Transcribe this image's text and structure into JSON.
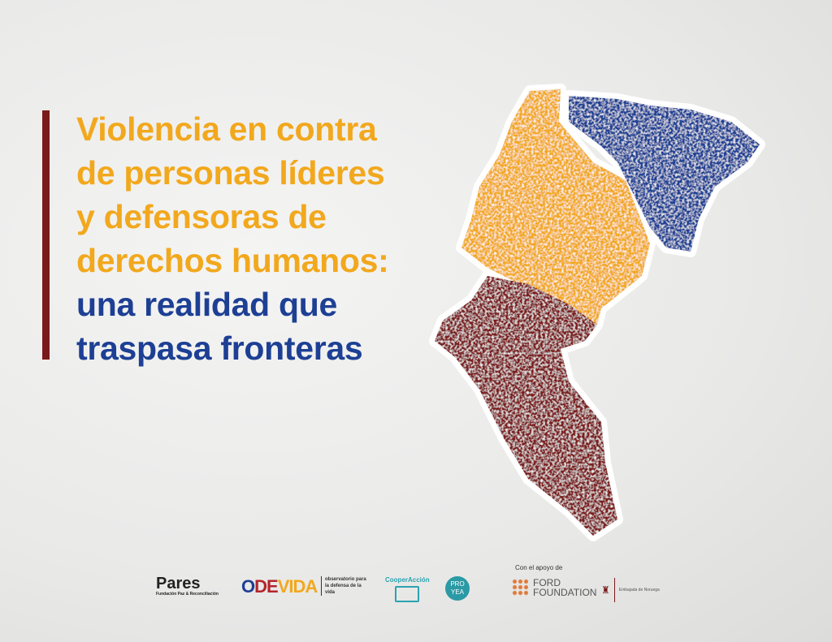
{
  "title": {
    "lines_orange": [
      "Violencia en contra",
      "de personas líderes",
      "y defensoras de",
      "derechos humanos:"
    ],
    "lines_blue": [
      "una realidad que",
      "traspasa fronteras"
    ]
  },
  "colors": {
    "orange": "#f2a81d",
    "blue": "#1d3f94",
    "dark_red": "#7b1a1a"
  },
  "logos": {
    "pares": {
      "name": "Pares",
      "tagline": "Fundación Paz & Reconciliación"
    },
    "odevida": {
      "name_parts": [
        "O",
        "DE",
        "VIDA"
      ],
      "tagline": "observatorio para la defensa de la vida"
    },
    "cooperaccion": "CooperAcción",
    "proyea": "PRO YEA",
    "support_label": "Con el apoyo de",
    "ford": "FORD FOUNDATION",
    "norway": "Embajada de Noruega"
  }
}
